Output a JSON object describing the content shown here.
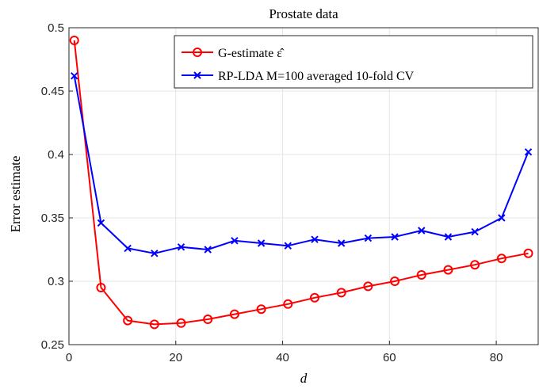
{
  "chart_data": {
    "type": "line",
    "title": "Prostate data",
    "xlabel": "d",
    "ylabel": "Error estimate",
    "xlim": [
      0,
      88
    ],
    "ylim": [
      0.25,
      0.5
    ],
    "xticks": [
      0,
      20,
      40,
      60,
      80
    ],
    "yticks": [
      0.25,
      0.3,
      0.35,
      0.4,
      0.45,
      0.5
    ],
    "xtick_labels": [
      "0",
      "20",
      "40",
      "60",
      "80"
    ],
    "ytick_labels": [
      "0.25",
      "0.3",
      "0.35",
      "0.4",
      "0.45",
      "0.5"
    ],
    "grid": true,
    "legend_position": "top-right",
    "x": [
      1,
      6,
      11,
      16,
      21,
      26,
      31,
      36,
      41,
      46,
      51,
      56,
      61,
      66,
      71,
      76,
      81,
      86
    ],
    "series": [
      {
        "name": "G-estimate ε̂",
        "color": "#ff0000",
        "marker": "circle",
        "values": [
          0.49,
          0.295,
          0.269,
          0.266,
          0.267,
          0.27,
          0.274,
          0.278,
          0.282,
          0.287,
          0.291,
          0.296,
          0.3,
          0.305,
          0.309,
          0.313,
          0.318,
          0.322
        ]
      },
      {
        "name": "RP-LDA M=100 averaged 10-fold CV",
        "color": "#0000ff",
        "marker": "x",
        "values": [
          0.462,
          0.346,
          0.326,
          0.322,
          0.327,
          0.325,
          0.332,
          0.33,
          0.328,
          0.333,
          0.33,
          0.334,
          0.335,
          0.34,
          0.335,
          0.339,
          0.35,
          0.402
        ]
      }
    ]
  }
}
